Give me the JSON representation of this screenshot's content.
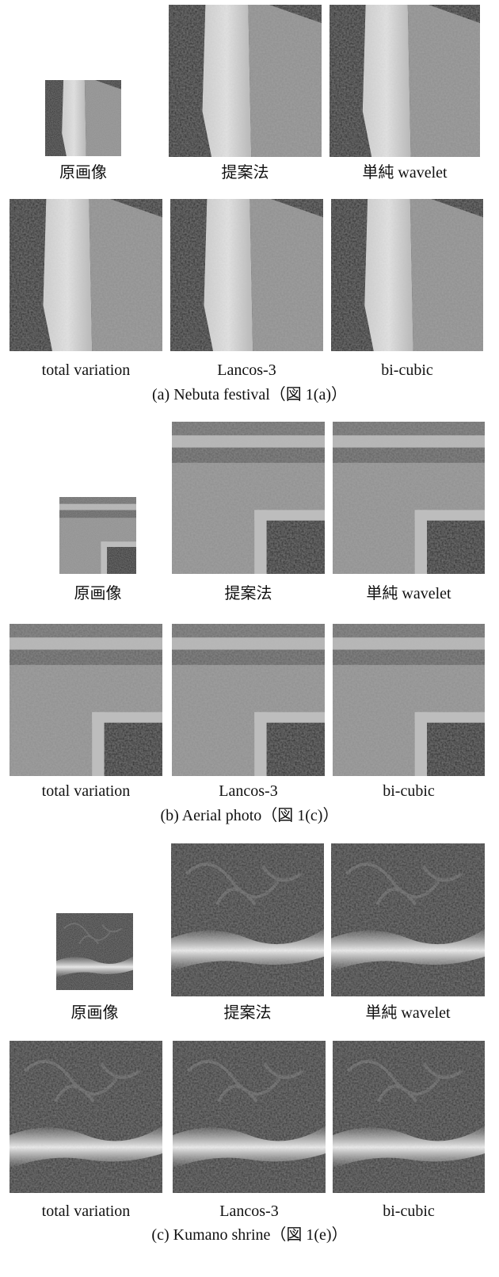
{
  "figures": [
    {
      "caption": "(a) Nebuta festival（図 1(a)）",
      "labels": [
        "原画像",
        "提案法",
        "単純 wavelet",
        "total variation",
        "Lancos-3",
        "bi-cubic"
      ]
    },
    {
      "caption": "(b) Aerial photo（図 1(c)）",
      "labels": [
        "原画像",
        "提案法",
        "単純 wavelet",
        "total variation",
        "Lancos-3",
        "bi-cubic"
      ]
    },
    {
      "caption": "(c) Kumano shrine（図 1(e)）",
      "labels": [
        "原画像",
        "提案法",
        "単純 wavelet",
        "total variation",
        "Lancos-3",
        "bi-cubic"
      ]
    }
  ]
}
